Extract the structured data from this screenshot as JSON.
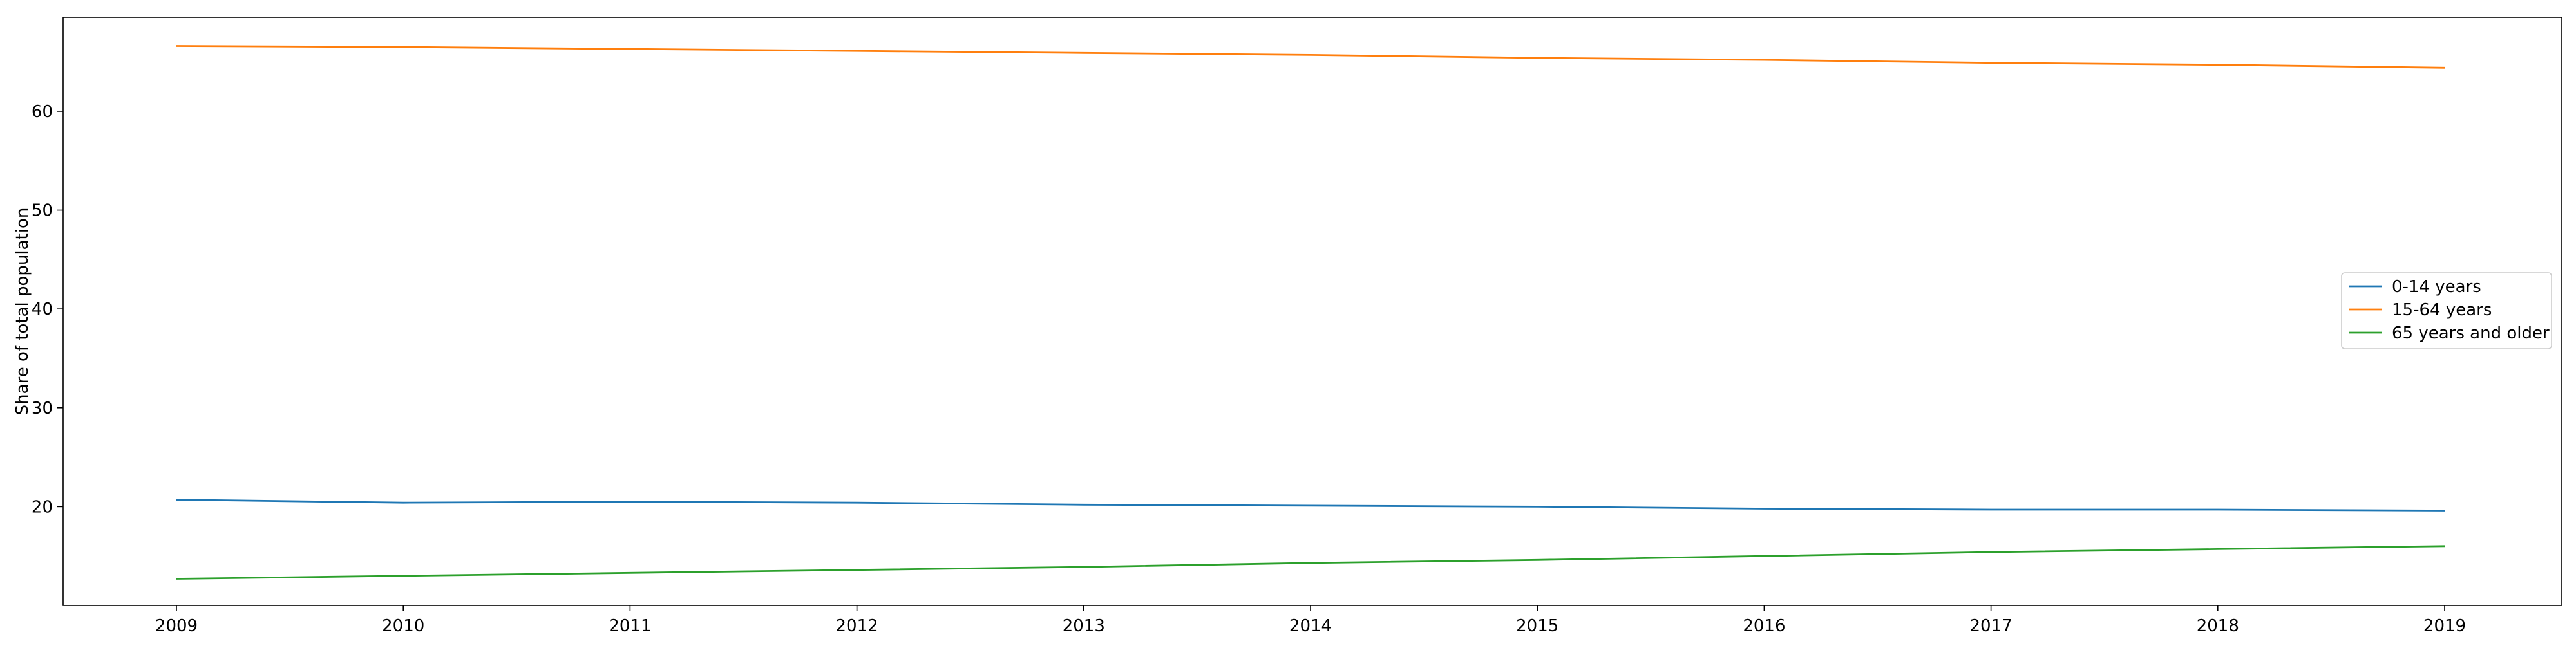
{
  "chart_data": {
    "type": "line",
    "title": "",
    "xlabel": "",
    "ylabel": "Share of total population",
    "x": [
      "2009",
      "2010",
      "2011",
      "2012",
      "2013",
      "2014",
      "2015",
      "2016",
      "2017",
      "2018",
      "2019"
    ],
    "series": [
      {
        "name": "0-14 years",
        "color": "#1f77b4",
        "values": [
          20.7,
          20.4,
          20.5,
          20.4,
          20.2,
          20.1,
          20.0,
          19.8,
          19.7,
          19.7,
          19.6
        ]
      },
      {
        "name": "15-64 years",
        "color": "#ff7f0e",
        "values": [
          66.6,
          66.5,
          66.3,
          66.1,
          65.9,
          65.7,
          65.4,
          65.2,
          64.9,
          64.7,
          64.4
        ]
      },
      {
        "name": "65 years and older",
        "color": "#2ca02c",
        "values": [
          12.7,
          13.0,
          13.3,
          13.6,
          13.9,
          14.3,
          14.6,
          15.0,
          15.4,
          15.7,
          16.0
        ]
      }
    ],
    "yticks": [
      20,
      30,
      40,
      50,
      60
    ],
    "ylim": [
      10,
      69.5
    ],
    "grid": false,
    "legend_position": "right"
  }
}
